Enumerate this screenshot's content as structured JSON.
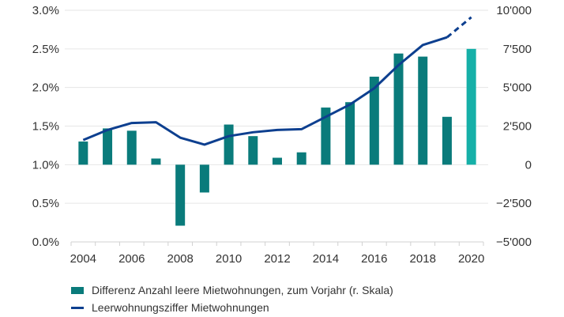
{
  "chart_data": {
    "type": "bar",
    "title": "",
    "xlabel": "",
    "ylabel_left": "",
    "ylabel_right": "",
    "x": [
      2004,
      2005,
      2006,
      2007,
      2008,
      2009,
      2010,
      2011,
      2012,
      2013,
      2014,
      2015,
      2016,
      2017,
      2018,
      2019,
      2020
    ],
    "x_tick_labels": [
      "2004",
      "2006",
      "2008",
      "2010",
      "2012",
      "2014",
      "2016",
      "2018",
      "2020"
    ],
    "y_left": {
      "range": [
        0.0,
        3.0
      ],
      "ticks": [
        "0.0%",
        "0.5%",
        "1.0%",
        "1.5%",
        "2.0%",
        "2.5%",
        "3.0%"
      ]
    },
    "y_right": {
      "range": [
        -5000,
        10000
      ],
      "ticks": [
        "−5'000",
        "−2'500",
        "0",
        "2'500",
        "5'000",
        "7'500",
        "10'000"
      ]
    },
    "grid": true,
    "legend_position": "bottom-left",
    "series": [
      {
        "name": "Differenz Anzahl leere Mietwohnungen, zum Vorjahr (r. Skala)",
        "type": "bar",
        "axis": "right",
        "color": "#0a7b7b",
        "highlight_color": "#16b0a8",
        "highlight_index": 16,
        "values": [
          1500,
          2350,
          2200,
          400,
          -3950,
          -1800,
          2600,
          1850,
          450,
          800,
          3700,
          4050,
          5700,
          7200,
          7000,
          3100,
          7500
        ]
      },
      {
        "name": "Leerwohnungsziffer Mietwohnungen",
        "type": "line",
        "axis": "left",
        "color": "#0d3f8f",
        "dashed_from_index": 15,
        "values": [
          1.32,
          1.45,
          1.54,
          1.55,
          1.35,
          1.26,
          1.37,
          1.42,
          1.45,
          1.46,
          1.62,
          1.78,
          1.99,
          2.29,
          2.55,
          2.65,
          2.91
        ]
      }
    ]
  },
  "legend": {
    "items": [
      {
        "label": "Differenz Anzahl leere Mietwohnungen, zum Vorjahr (r. Skala)",
        "color": "#0a7b7b",
        "kind": "bar"
      },
      {
        "label": "Leerwohnungsziffer Mietwohnungen",
        "color": "#0d3f8f",
        "kind": "line"
      }
    ]
  }
}
